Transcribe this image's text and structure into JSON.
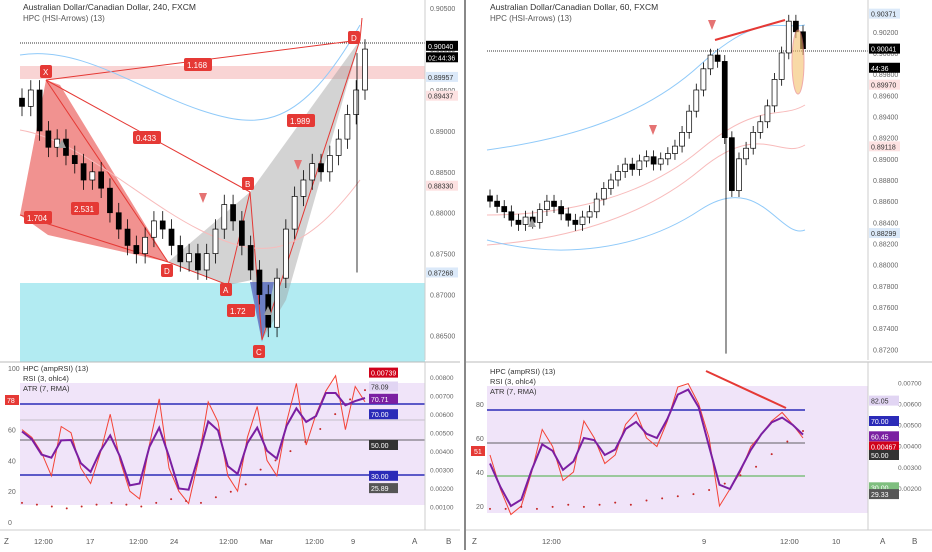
{
  "left": {
    "title": "Australian Dollar/Canadian Dollar, 240, FXCM",
    "subtitle": "HPC (HSI-Arrows) (13)",
    "price_ticks": [
      "0.90500",
      "0.90000",
      "0.89500",
      "0.89000",
      "0.88500",
      "0.88000",
      "0.87500",
      "0.87000",
      "0.86500"
    ],
    "price_tags": [
      {
        "text": "0.90040",
        "bg": "#000000",
        "fg": "#ffffff",
        "value": 0.9004
      },
      {
        "text": "02:44:36",
        "bg": "#000000",
        "fg": "#ffffff",
        "value": 0.899
      },
      {
        "text": "0.89957",
        "bg": "#dbe9f9",
        "fg": "#333333",
        "value": 0.8966
      },
      {
        "text": "0.89437",
        "bg": "#fde2e2",
        "fg": "#333333",
        "value": 0.8943
      },
      {
        "text": "0.88330",
        "bg": "#fde2e2",
        "fg": "#333333",
        "value": 0.8833
      },
      {
        "text": "0.87268",
        "bg": "#dbe9f9",
        "fg": "#333333",
        "value": 0.8727
      }
    ],
    "pattern_points": [
      {
        "label": "X",
        "value": 0.8967
      },
      {
        "label": "A",
        "value": 0.8722
      },
      {
        "label": "B",
        "value": 0.8818
      },
      {
        "label": "C",
        "value": 0.8648
      },
      {
        "label": "D",
        "value": 0.9003
      },
      {
        "label": "D",
        "value": 0.8746
      }
    ],
    "ratios": [
      "1.168",
      "0.433",
      "1.989",
      "2.531",
      "1.704",
      "1.72"
    ],
    "indicator_labels": [
      "HPC (ampRSI) (13)",
      "RSI (3, ohlc4)",
      "ATR (7, RMA)"
    ],
    "rsi_ticks": [
      "100",
      "80",
      "60",
      "40",
      "20",
      "0"
    ],
    "atr_ticks": [
      "0.00800",
      "0.00700",
      "0.00600",
      "0.00500",
      "0.00400",
      "0.00300",
      "0.00200",
      "0.00100"
    ],
    "indicator_tags": [
      {
        "text": "0.00739",
        "bg": "#d0021b",
        "fg": "#ffffff",
        "value": 97
      },
      {
        "text": "78.09",
        "bg": "#e1d5f3",
        "fg": "#333333",
        "value": 88
      },
      {
        "text": "70.71",
        "bg": "#7b1fa2",
        "fg": "#ffffff",
        "value": 80
      },
      {
        "text": "70.00",
        "bg": "#2b2bb8",
        "fg": "#ffffff",
        "value": 70
      },
      {
        "text": "50.00",
        "bg": "#333333",
        "fg": "#ffffff",
        "value": 50
      },
      {
        "text": "30.00",
        "bg": "#2b2bb8",
        "fg": "#ffffff",
        "value": 30
      },
      {
        "text": "25.89",
        "bg": "#555555",
        "fg": "#ffffff",
        "value": 22
      }
    ],
    "left_tag": "78",
    "time_labels": [
      "12:00",
      "17",
      "12:00",
      "24",
      "12:00",
      "Mar",
      "12:00",
      "9"
    ],
    "axis_letters": {
      "z": "Z",
      "a": "A",
      "b": "B"
    }
  },
  "right": {
    "title": "Australian Dollar/Canadian Dollar, 60, FXCM",
    "subtitle": "HPC (HSI-Arrows) (13)",
    "price_ticks": [
      "0.90200",
      "0.90000",
      "0.89800",
      "0.89600",
      "0.89400",
      "0.89200",
      "0.89000",
      "0.88800",
      "0.88600",
      "0.88400",
      "0.88200",
      "0.88000",
      "0.87800",
      "0.87600",
      "0.87400",
      "0.87200"
    ],
    "price_tags": [
      {
        "text": "0.90371",
        "bg": "#dbe9f9",
        "fg": "#333333",
        "value": 0.90371
      },
      {
        "text": "0.90041",
        "bg": "#000000",
        "fg": "#ffffff",
        "value": 0.90041
      },
      {
        "text": "44:36",
        "bg": "#000000",
        "fg": "#ffffff",
        "value": 0.8986
      },
      {
        "text": "0.89970",
        "bg": "#fde2e2",
        "fg": "#333333",
        "value": 0.897
      },
      {
        "text": "0.89118",
        "bg": "#fde2e2",
        "fg": "#333333",
        "value": 0.89118
      },
      {
        "text": "0.88299",
        "bg": "#dbe9f9",
        "fg": "#333333",
        "value": 0.88299
      }
    ],
    "indicator_labels": [
      "HPC (ampRSI) (13)",
      "RSI (3, ohlc4)",
      "ATR (7, RMA)"
    ],
    "rsi_ticks": [
      "80",
      "60",
      "40",
      "20"
    ],
    "atr_ticks": [
      "0.00700",
      "0.00600",
      "0.00500",
      "0.00400",
      "0.00300",
      "0.00200"
    ],
    "indicator_tags": [
      {
        "text": "82.05",
        "bg": "#e1d5f3",
        "fg": "#333333",
        "value": 82
      },
      {
        "text": "70.00",
        "bg": "#2b2bb8",
        "fg": "#ffffff",
        "value": 70
      },
      {
        "text": "60.45",
        "bg": "#7b1fa2",
        "fg": "#ffffff",
        "value": 61
      },
      {
        "text": "0.00467",
        "bg": "#d0021b",
        "fg": "#ffffff",
        "value": 55
      },
      {
        "text": "50.00",
        "bg": "#333333",
        "fg": "#ffffff",
        "value": 50
      },
      {
        "text": "30.00",
        "bg": "#7fbf7f",
        "fg": "#ffffff",
        "value": 31
      },
      {
        "text": "29.33",
        "bg": "#555555",
        "fg": "#ffffff",
        "value": 27
      }
    ],
    "left_tag": "51",
    "time_labels": [
      "12:00",
      "9",
      "12:00",
      "10"
    ],
    "axis_letters": {
      "z": "Z",
      "a": "A",
      "b": "B"
    }
  },
  "colors": {
    "bull_candle": "#ffffff",
    "bear_candle": "#000000",
    "pattern_red": "#e53935",
    "pattern_gray": "#9e9e9e",
    "pattern_blue": "#5c6bc0",
    "cyan_zone": "#b2ebf2",
    "pink_zone": "#f8c9c9",
    "rsi_purple": "#7b1fa2",
    "rsi_red": "#f44336",
    "level_blue": "#2b2bb8",
    "level_green": "#4caf50",
    "zone_lavender": "#ead9f7"
  },
  "chart_data": [
    {
      "type": "candlestick",
      "title": "Australian Dollar/Canadian Dollar, 240, FXCM",
      "timeframe": "240",
      "x_labels": [
        "12:00",
        "17",
        "12:00",
        "24",
        "12:00",
        "Mar",
        "12:00",
        "9"
      ],
      "ylim": [
        0.862,
        0.906
      ],
      "close_series": [
        0.893,
        0.895,
        0.89,
        0.888,
        0.889,
        0.887,
        0.886,
        0.884,
        0.885,
        0.883,
        0.88,
        0.878,
        0.876,
        0.875,
        0.877,
        0.879,
        0.878,
        0.876,
        0.874,
        0.875,
        0.873,
        0.875,
        0.878,
        0.881,
        0.879,
        0.876,
        0.873,
        0.87,
        0.866,
        0.872,
        0.878,
        0.882,
        0.884,
        0.886,
        0.885,
        0.887,
        0.889,
        0.892,
        0.895,
        0.9
      ],
      "last_price": 0.9004,
      "harmonic_points": {
        "X": 0.8967,
        "A": 0.8722,
        "B": 0.8818,
        "C": 0.8648,
        "D": 0.9003
      },
      "fib_ratios": [
        1.168,
        0.433,
        1.989,
        2.531,
        1.704,
        1.72
      ]
    },
    {
      "type": "line",
      "title": "HPC (ampRSI) (13)",
      "series": [
        {
          "name": "RSI (3, ohlc4)",
          "values": [
            60,
            55,
            45,
            30,
            62,
            58,
            35,
            25,
            45,
            70,
            40,
            20,
            15,
            50,
            80,
            35,
            20,
            12,
            40,
            78,
            65,
            30,
            20,
            55,
            75,
            40,
            30,
            65,
            90,
            50,
            70,
            85,
            95,
            60,
            88,
            78
          ]
        },
        {
          "name": "ATR (7, RMA)",
          "values": [
            0.0012,
            0.0011,
            0.001,
            0.0009,
            0.001,
            0.0011,
            0.0012,
            0.0011,
            0.001,
            0.0012,
            0.0014,
            0.0013,
            0.0012,
            0.0015,
            0.0018,
            0.0022,
            0.003,
            0.0035,
            0.004,
            0.0045,
            0.0052,
            0.006,
            0.0068,
            0.0073
          ]
        }
      ],
      "levels": [
        70,
        50,
        30
      ],
      "ylim": [
        0,
        100
      ]
    },
    {
      "type": "candlestick",
      "title": "Australian Dollar/Canadian Dollar, 60, FXCM",
      "timeframe": "60",
      "x_labels": [
        "12:00",
        "9",
        "12:00",
        "10"
      ],
      "ylim": [
        0.871,
        0.905
      ],
      "close_series": [
        0.886,
        0.8855,
        0.885,
        0.8842,
        0.8838,
        0.8845,
        0.884,
        0.8852,
        0.886,
        0.8855,
        0.8848,
        0.8842,
        0.8838,
        0.8845,
        0.885,
        0.8862,
        0.8872,
        0.888,
        0.8888,
        0.8895,
        0.889,
        0.8898,
        0.8902,
        0.8895,
        0.89,
        0.8905,
        0.8912,
        0.8925,
        0.8945,
        0.8965,
        0.8985,
        0.8998,
        0.8992,
        0.892,
        0.887,
        0.89,
        0.891,
        0.8925,
        0.8935,
        0.895,
        0.8975,
        0.9,
        0.903,
        0.902,
        0.9004
      ],
      "last_price": 0.90041
    },
    {
      "type": "line",
      "title": "HPC (ampRSI) (13)",
      "series": [
        {
          "name": "RSI (3, ohlc4)",
          "values": [
            50,
            30,
            15,
            20,
            40,
            65,
            55,
            35,
            40,
            70,
            60,
            45,
            50,
            68,
            75,
            60,
            55,
            70,
            90,
            92,
            80,
            60,
            20,
            30,
            40,
            55,
            62,
            70,
            75,
            68,
            60
          ]
        },
        {
          "name": "ATR (7, RMA)",
          "values": [
            0.001,
            0.001,
            0.0011,
            0.001,
            0.0011,
            0.0012,
            0.0011,
            0.0012,
            0.0013,
            0.0012,
            0.0014,
            0.0015,
            0.0016,
            0.0017,
            0.0019,
            0.0022,
            0.0026,
            0.003,
            0.0036,
            0.0042,
            0.0047
          ]
        }
      ],
      "levels": [
        70,
        50,
        30
      ],
      "ylim": [
        10,
        100
      ]
    }
  ]
}
